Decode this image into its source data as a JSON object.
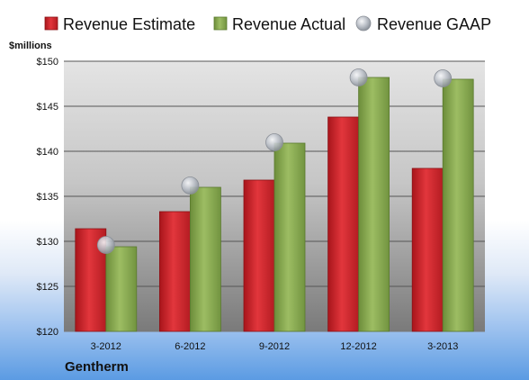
{
  "chart_data": {
    "type": "bar",
    "unit_label": "$millions",
    "company": "Gentherm",
    "categories": [
      "3-2012",
      "6-2012",
      "9-2012",
      "12-2012",
      "3-2013"
    ],
    "ylim": [
      120,
      150
    ],
    "yticks": [
      120,
      125,
      130,
      135,
      140,
      145,
      150
    ],
    "ytick_labels": [
      "$120",
      "$125",
      "$130",
      "$135",
      "$140",
      "$145",
      "$150"
    ],
    "grid": true,
    "legend_position": "top",
    "series": [
      {
        "name": "Revenue Estimate",
        "kind": "bar",
        "color": "#d42a30",
        "values": [
          131.4,
          133.3,
          136.8,
          143.8,
          138.1
        ]
      },
      {
        "name": "Revenue Actual",
        "kind": "bar",
        "color": "#8aab53",
        "values": [
          129.4,
          136.0,
          140.9,
          148.2,
          148.0
        ]
      },
      {
        "name": "Revenue GAAP",
        "kind": "marker",
        "color": "#b9bec6",
        "values": [
          129.6,
          136.2,
          141.0,
          148.2,
          148.1
        ]
      }
    ]
  }
}
